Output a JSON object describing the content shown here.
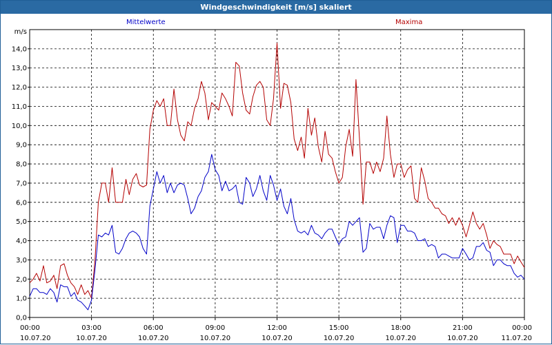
{
  "window": {
    "title": "Windgeschwindigkeit [m/s] skaliert"
  },
  "chart_data": {
    "type": "line",
    "title": "Windgeschwindigkeit [m/s] skaliert",
    "ylabel": "m/s",
    "xlabel": "",
    "ylim": [
      0,
      15
    ],
    "xlim": [
      0,
      24
    ],
    "grid": true,
    "legend": "top",
    "yticks": [
      "0,0",
      "1,0",
      "2,0",
      "3,0",
      "4,0",
      "5,0",
      "6,0",
      "7,0",
      "8,0",
      "9,0",
      "10,0",
      "11,0",
      "12,0",
      "13,0",
      "14,0"
    ],
    "xticks": [
      {
        "time": "00:00",
        "date": "10.07.20"
      },
      {
        "time": "03:00",
        "date": "10.07.20"
      },
      {
        "time": "06:00",
        "date": "10.07.20"
      },
      {
        "time": "09:00",
        "date": "10.07.20"
      },
      {
        "time": "12:00",
        "date": "10.07.20"
      },
      {
        "time": "15:00",
        "date": "10.07.20"
      },
      {
        "time": "18:00",
        "date": "10.07.20"
      },
      {
        "time": "21:00",
        "date": "10.07.20"
      },
      {
        "time": "00:00",
        "date": "11.07.20"
      }
    ],
    "x_hours": [
      0,
      0.17,
      0.33,
      0.5,
      0.67,
      0.83,
      1.0,
      1.17,
      1.33,
      1.5,
      1.67,
      1.83,
      2.0,
      2.17,
      2.33,
      2.5,
      2.67,
      2.83,
      3.0,
      3.17,
      3.33,
      3.5,
      3.67,
      3.83,
      4.0,
      4.17,
      4.33,
      4.5,
      4.67,
      4.83,
      5.0,
      5.17,
      5.33,
      5.5,
      5.67,
      5.83,
      6.0,
      6.17,
      6.33,
      6.5,
      6.67,
      6.83,
      7.0,
      7.17,
      7.33,
      7.5,
      7.67,
      7.83,
      8.0,
      8.17,
      8.33,
      8.5,
      8.67,
      8.83,
      9.0,
      9.17,
      9.33,
      9.5,
      9.67,
      9.83,
      10.0,
      10.17,
      10.33,
      10.5,
      10.67,
      10.83,
      11.0,
      11.17,
      11.33,
      11.5,
      11.67,
      11.83,
      12.0,
      12.17,
      12.33,
      12.5,
      12.67,
      12.83,
      13.0,
      13.17,
      13.33,
      13.5,
      13.67,
      13.83,
      14.0,
      14.17,
      14.33,
      14.5,
      14.67,
      14.83,
      15.0,
      15.17,
      15.33,
      15.5,
      15.67,
      15.83,
      16.0,
      16.17,
      16.33,
      16.5,
      16.67,
      16.83,
      17.0,
      17.17,
      17.33,
      17.5,
      17.67,
      17.83,
      18.0,
      18.17,
      18.33,
      18.5,
      18.67,
      18.83,
      19.0,
      19.17,
      19.33,
      19.5,
      19.67,
      19.83,
      20.0,
      20.17,
      20.33,
      20.5,
      20.67,
      20.83,
      21.0,
      21.17,
      21.33,
      21.5,
      21.67,
      21.83,
      22.0,
      22.17,
      22.33,
      22.5,
      22.67,
      22.83,
      23.0,
      23.17,
      23.33,
      23.5,
      23.67,
      23.83,
      24.0
    ],
    "series": [
      {
        "name": "Mittelwerte",
        "color": "#0000c8",
        "values": [
          1.1,
          1.5,
          1.5,
          1.3,
          1.3,
          1.2,
          1.5,
          1.3,
          0.8,
          1.7,
          1.6,
          1.6,
          1.1,
          1.3,
          0.9,
          0.8,
          0.6,
          0.4,
          0.9,
          2.5,
          4.3,
          4.2,
          4.4,
          4.3,
          4.8,
          3.4,
          3.3,
          3.6,
          4.1,
          4.4,
          4.5,
          4.4,
          4.2,
          3.6,
          3.3,
          5.8,
          6.7,
          7.6,
          7.0,
          7.4,
          6.5,
          7.0,
          6.5,
          6.9,
          7.0,
          6.9,
          6.2,
          5.4,
          5.7,
          6.3,
          6.6,
          7.3,
          7.6,
          8.5,
          7.7,
          7.4,
          6.6,
          7.1,
          6.6,
          6.7,
          6.9,
          6.0,
          5.9,
          7.3,
          7.0,
          6.3,
          6.7,
          7.4,
          6.6,
          6.1,
          7.4,
          6.9,
          6.1,
          6.7,
          5.8,
          5.4,
          6.2,
          5.1,
          4.5,
          4.4,
          4.5,
          4.3,
          4.8,
          4.4,
          4.3,
          4.1,
          4.4,
          4.6,
          4.6,
          4.2,
          3.8,
          4.1,
          4.2,
          5.0,
          4.8,
          5.0,
          5.2,
          3.4,
          3.6,
          4.9,
          4.6,
          4.7,
          4.7,
          4.1,
          4.8,
          5.3,
          5.2,
          3.9,
          4.8,
          4.8,
          4.5,
          4.5,
          4.4,
          4.0,
          4.0,
          4.1,
          3.7,
          3.8,
          3.7,
          3.1,
          3.3,
          3.3,
          3.2,
          3.1,
          3.1,
          3.1,
          3.6,
          3.3,
          3.0,
          3.1,
          3.7,
          3.7,
          3.9,
          3.5,
          3.4,
          2.7,
          3.0,
          3.0,
          2.8,
          2.7,
          2.7,
          2.3,
          2.1,
          2.2,
          2.0
        ]
      },
      {
        "name": "Maxima",
        "color": "#b40000",
        "values": [
          1.8,
          2.0,
          2.3,
          1.9,
          2.7,
          1.8,
          1.9,
          2.2,
          1.5,
          2.7,
          2.8,
          2.2,
          1.8,
          1.6,
          1.2,
          1.7,
          1.2,
          1.4,
          1.0,
          3.0,
          6.0,
          7.0,
          7.0,
          6.0,
          7.8,
          6.0,
          6.0,
          6.0,
          7.2,
          6.4,
          7.2,
          7.5,
          6.9,
          6.8,
          6.9,
          9.8,
          10.8,
          11.3,
          11.0,
          11.4,
          10.0,
          10.0,
          11.9,
          10.3,
          9.5,
          9.2,
          10.2,
          10.0,
          10.9,
          11.4,
          12.3,
          11.7,
          10.3,
          11.2,
          11.0,
          10.8,
          11.7,
          11.4,
          11.0,
          10.5,
          13.3,
          13.1,
          11.7,
          10.8,
          10.6,
          11.5,
          12.1,
          12.3,
          12.0,
          10.3,
          10.0,
          11.4,
          14.3,
          10.9,
          12.2,
          12.1,
          11.2,
          9.3,
          8.7,
          9.4,
          8.3,
          10.9,
          9.5,
          10.4,
          8.9,
          8.1,
          9.7,
          8.5,
          8.3,
          7.6,
          7.0,
          7.3,
          8.9,
          9.8,
          8.4,
          12.4,
          9.3,
          5.9,
          8.1,
          8.1,
          7.5,
          8.1,
          7.6,
          8.3,
          10.5,
          8.5,
          7.3,
          8.0,
          8.0,
          7.3,
          7.7,
          7.9,
          6.2,
          6.0,
          7.8,
          7.1,
          6.2,
          6.0,
          5.7,
          5.7,
          5.4,
          5.3,
          4.9,
          5.2,
          4.8,
          5.2,
          4.8,
          4.2,
          4.8,
          5.5,
          4.9,
          4.6,
          4.9,
          4.3,
          3.6,
          4.0,
          3.8,
          3.7,
          3.3,
          3.3,
          3.3,
          2.8,
          3.2,
          2.9,
          2.6
        ]
      }
    ]
  }
}
